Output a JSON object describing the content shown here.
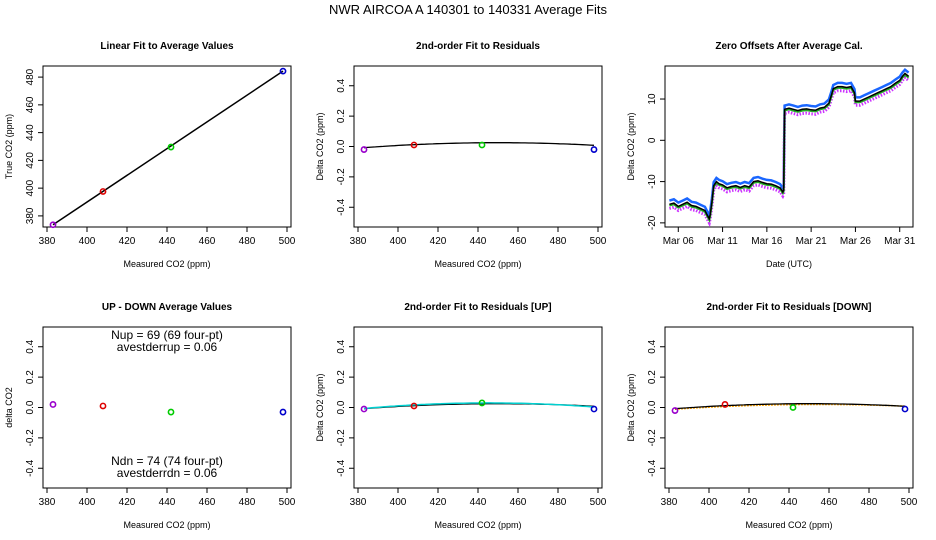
{
  "suptitle": "NWR   AIRCOA A   140301 to 140331   Average Fits",
  "chart_data": [
    {
      "type": "line",
      "title": "Linear Fit to Average Values",
      "xlabel": "Measured CO2 (ppm)",
      "ylabel": "True CO2 (ppm)",
      "xlim": [
        378,
        502
      ],
      "ylim": [
        372,
        488
      ],
      "xticks": [
        380,
        400,
        420,
        440,
        460,
        480,
        500
      ],
      "yticks": [
        380,
        400,
        420,
        440,
        460,
        480
      ],
      "fit_line": {
        "x": [
          383,
          498
        ],
        "y": [
          373.6,
          484.3
        ],
        "color": "#000000"
      },
      "points": [
        {
          "x": 383,
          "y": 373.6,
          "color": "#9900cc"
        },
        {
          "x": 408,
          "y": 397.6,
          "color": "#dd0000"
        },
        {
          "x": 442,
          "y": 429.6,
          "color": "#00cc00"
        },
        {
          "x": 498,
          "y": 484.3,
          "color": "#0000cc"
        }
      ]
    },
    {
      "type": "line",
      "title": "2nd-order Fit to Residuals",
      "xlabel": "Measured CO2 (ppm)",
      "ylabel": "Delta CO2 (ppm)",
      "xlim": [
        378,
        502
      ],
      "ylim": [
        -0.53,
        0.53
      ],
      "xticks": [
        380,
        400,
        420,
        440,
        460,
        480,
        500
      ],
      "yticks": [
        -0.4,
        -0.2,
        0.0,
        0.2,
        0.4
      ],
      "fit_curve": {
        "x_range": [
          383,
          498
        ],
        "coef": [
          -7.3e-06,
          450,
          0.025
        ],
        "color": "#000000"
      },
      "points": [
        {
          "x": 383,
          "y": -0.02,
          "color": "#9900cc"
        },
        {
          "x": 408,
          "y": 0.01,
          "color": "#dd0000"
        },
        {
          "x": 442,
          "y": 0.01,
          "color": "#00cc00"
        },
        {
          "x": 498,
          "y": -0.02,
          "color": "#0000cc"
        }
      ]
    },
    {
      "type": "line",
      "title": "Zero Offsets After Average Cal.",
      "xlabel": "Date (UTC)",
      "ylabel": "Delta CO2 (ppm)",
      "xlim": [
        4.5,
        32.5
      ],
      "ylim": [
        -21,
        18
      ],
      "xticks": [
        6,
        11,
        16,
        21,
        26,
        31
      ],
      "xticklabels": [
        "Mar 06",
        "Mar 11",
        "Mar 16",
        "Mar 21",
        "Mar 26",
        "Mar 31"
      ],
      "yticks": [
        -20,
        -10,
        0,
        10
      ],
      "series": [
        {
          "name": "zero offset",
          "color": "#000000",
          "x": [
            5.0,
            5.5,
            6.0,
            6.5,
            7.0,
            7.5,
            8.0,
            8.5,
            9.0,
            9.2,
            9.4,
            9.5,
            9.6,
            9.8,
            10.0,
            10.3,
            10.6,
            11.0,
            11.5,
            12.0,
            12.5,
            13.0,
            13.5,
            14.0,
            14.5,
            15.0,
            15.5,
            16.0,
            16.5,
            17.0,
            17.5,
            17.8,
            17.9,
            18.0,
            18.5,
            19.0,
            19.5,
            20.0,
            20.5,
            21.0,
            21.5,
            22.0,
            22.5,
            23.0,
            23.3,
            23.5,
            24.0,
            24.5,
            25.0,
            25.5,
            25.9,
            26.0,
            26.5,
            27.0,
            27.5,
            28.0,
            28.5,
            29.0,
            29.5,
            30.0,
            30.5,
            31.0,
            31.3,
            31.6,
            32.0
          ],
          "y": [
            -15.5,
            -15.2,
            -16.0,
            -15.5,
            -15.0,
            -15.8,
            -16.0,
            -16.5,
            -17.0,
            -17.8,
            -18.6,
            -19.0,
            -18.0,
            -15.0,
            -11.0,
            -10.0,
            -10.5,
            -10.8,
            -11.5,
            -11.2,
            -11.0,
            -11.4,
            -11.0,
            -11.3,
            -10.0,
            -9.8,
            -10.2,
            -10.5,
            -10.6,
            -11.0,
            -11.5,
            -12.5,
            -12.0,
            7.5,
            7.8,
            7.5,
            7.2,
            7.5,
            7.6,
            7.4,
            7.3,
            7.8,
            8.0,
            9.0,
            11.0,
            12.5,
            13.0,
            13.0,
            12.8,
            13.0,
            11.5,
            9.5,
            9.5,
            10.0,
            10.5,
            11.0,
            11.5,
            12.0,
            12.5,
            13.0,
            13.8,
            14.5,
            15.5,
            16.2,
            15.5
          ]
        }
      ]
    },
    {
      "type": "scatter",
      "title": "UP - DOWN Average Values",
      "xlabel": "Measured CO2 (ppm)",
      "ylabel": "delta CO2",
      "xlim": [
        378,
        502
      ],
      "ylim": [
        -0.53,
        0.53
      ],
      "xticks": [
        380,
        400,
        420,
        440,
        460,
        480,
        500
      ],
      "yticks": [
        -0.4,
        -0.2,
        0.0,
        0.2,
        0.4
      ],
      "annotations": [
        "Nup = 69 (69 four-pt)",
        "avestderrup =  0.06",
        "Ndn = 74 (74 four-pt)",
        "avestderrdn =  0.06"
      ],
      "points": [
        {
          "x": 383,
          "y": 0.02,
          "color": "#9900cc"
        },
        {
          "x": 408,
          "y": 0.01,
          "color": "#dd0000"
        },
        {
          "x": 442,
          "y": -0.03,
          "color": "#00cc00"
        },
        {
          "x": 498,
          "y": -0.03,
          "color": "#0000cc"
        }
      ]
    },
    {
      "type": "line",
      "title": "2nd-order Fit to Residuals [UP]",
      "xlabel": "Measured CO2 (ppm)",
      "ylabel": "Delta CO2 (ppm)",
      "xlim": [
        378,
        502
      ],
      "ylim": [
        -0.53,
        0.53
      ],
      "xticks": [
        380,
        400,
        420,
        440,
        460,
        480,
        500
      ],
      "yticks": [
        -0.4,
        -0.2,
        0.0,
        0.2,
        0.4
      ],
      "fit_curve": {
        "x_range": [
          383,
          498
        ],
        "coef": [
          -7.3e-06,
          450,
          0.025
        ],
        "color": "#000000"
      },
      "fit_curve2": {
        "x_range": [
          383,
          498
        ],
        "coef": [
          -9.5e-06,
          445,
          0.03
        ],
        "color": "#00d0d0"
      },
      "points": [
        {
          "x": 383,
          "y": -0.01,
          "color": "#9900cc"
        },
        {
          "x": 408,
          "y": 0.01,
          "color": "#dd0000"
        },
        {
          "x": 442,
          "y": 0.03,
          "color": "#00cc00"
        },
        {
          "x": 498,
          "y": -0.01,
          "color": "#0000cc"
        }
      ]
    },
    {
      "type": "line",
      "title": "2nd-order Fit to Residuals [DOWN]",
      "xlabel": "Measured CO2 (ppm)",
      "ylabel": "Delta CO2 (ppm)",
      "xlim": [
        378,
        502
      ],
      "ylim": [
        -0.53,
        0.53
      ],
      "xticks": [
        380,
        400,
        420,
        440,
        460,
        480,
        500
      ],
      "yticks": [
        -0.4,
        -0.2,
        0.0,
        0.2,
        0.4
      ],
      "fit_curve": {
        "x_range": [
          383,
          498
        ],
        "coef": [
          -7.3e-06,
          450,
          0.025
        ],
        "color": "#000000"
      },
      "fit_curve2": {
        "x_range": [
          383,
          498
        ],
        "coef": [
          -6e-06,
          455,
          0.02
        ],
        "color": "#ffa500"
      },
      "points": [
        {
          "x": 383,
          "y": -0.02,
          "color": "#9900cc"
        },
        {
          "x": 408,
          "y": 0.02,
          "color": "#dd0000"
        },
        {
          "x": 442,
          "y": 0.0,
          "color": "#00cc00"
        },
        {
          "x": 498,
          "y": -0.01,
          "color": "#0000cc"
        }
      ]
    }
  ]
}
